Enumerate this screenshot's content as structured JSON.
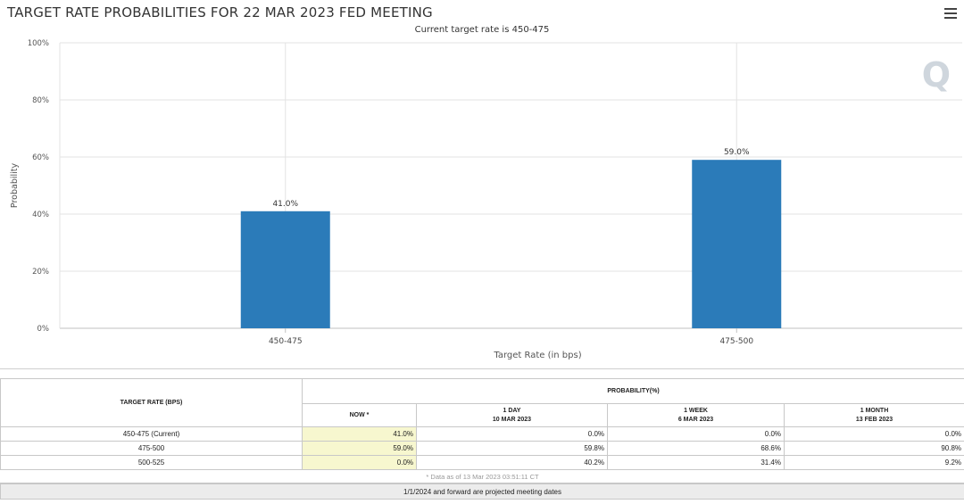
{
  "title": "TARGET RATE PROBABILITIES FOR 22 MAR 2023 FED MEETING",
  "subtitle": "Current target rate is 450-475",
  "watermark": "Q",
  "chart_data": {
    "type": "bar",
    "categories": [
      "450-475",
      "475-500"
    ],
    "values": [
      41.0,
      59.0
    ],
    "data_labels": [
      "41.0%",
      "59.0%"
    ],
    "xlabel": "Target Rate (in bps)",
    "ylabel": "Probability",
    "ylim": [
      0,
      100
    ],
    "yticks": [
      0,
      20,
      40,
      60,
      80,
      100
    ],
    "ytick_labels": [
      "0%",
      "20%",
      "40%",
      "60%",
      "80%",
      "100%"
    ],
    "grid": true,
    "bar_color": "#2b7bb9"
  },
  "table": {
    "rate_header": "TARGET RATE (BPS)",
    "prob_header": "PROBABILITY(%)",
    "columns": [
      {
        "line1": "NOW *",
        "line2": ""
      },
      {
        "line1": "1 DAY",
        "line2": "10 MAR 2023"
      },
      {
        "line1": "1 WEEK",
        "line2": "6 MAR 2023"
      },
      {
        "line1": "1 MONTH",
        "line2": "13 FEB 2023"
      }
    ],
    "rows": [
      {
        "rate": "450-475 (Current)",
        "now": "41.0%",
        "day": "0.0%",
        "week": "0.0%",
        "month": "0.0%"
      },
      {
        "rate": "475-500",
        "now": "59.0%",
        "day": "59.8%",
        "week": "68.6%",
        "month": "90.8%"
      },
      {
        "rate": "500-525",
        "now": "0.0%",
        "day": "40.2%",
        "week": "31.4%",
        "month": "9.2%"
      }
    ],
    "note": "* Data as of 13 Mar 2023 03:51:11 CT",
    "footer": "1/1/2024 and forward are projected meeting dates"
  }
}
